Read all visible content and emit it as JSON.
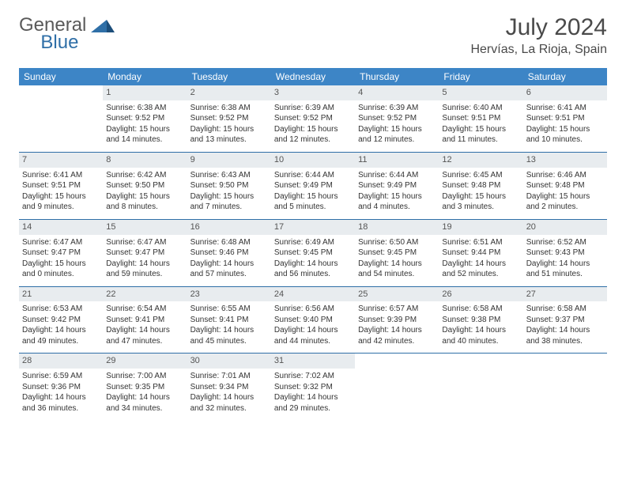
{
  "brand": {
    "part1": "General",
    "part2": "Blue",
    "icon_color": "#2f6fa7"
  },
  "title": "July 2024",
  "location": "Hervías, La Rioja, Spain",
  "colors": {
    "header_bg": "#3d85c6",
    "header_text": "#ffffff",
    "daynum_bg": "#e8ecef",
    "row_border": "#2f6fa7",
    "text": "#333333"
  },
  "weekdays": [
    "Sunday",
    "Monday",
    "Tuesday",
    "Wednesday",
    "Thursday",
    "Friday",
    "Saturday"
  ],
  "weeks": [
    [
      null,
      {
        "n": "1",
        "sr": "6:38 AM",
        "ss": "9:52 PM",
        "dl": "15 hours and 14 minutes."
      },
      {
        "n": "2",
        "sr": "6:38 AM",
        "ss": "9:52 PM",
        "dl": "15 hours and 13 minutes."
      },
      {
        "n": "3",
        "sr": "6:39 AM",
        "ss": "9:52 PM",
        "dl": "15 hours and 12 minutes."
      },
      {
        "n": "4",
        "sr": "6:39 AM",
        "ss": "9:52 PM",
        "dl": "15 hours and 12 minutes."
      },
      {
        "n": "5",
        "sr": "6:40 AM",
        "ss": "9:51 PM",
        "dl": "15 hours and 11 minutes."
      },
      {
        "n": "6",
        "sr": "6:41 AM",
        "ss": "9:51 PM",
        "dl": "15 hours and 10 minutes."
      }
    ],
    [
      {
        "n": "7",
        "sr": "6:41 AM",
        "ss": "9:51 PM",
        "dl": "15 hours and 9 minutes."
      },
      {
        "n": "8",
        "sr": "6:42 AM",
        "ss": "9:50 PM",
        "dl": "15 hours and 8 minutes."
      },
      {
        "n": "9",
        "sr": "6:43 AM",
        "ss": "9:50 PM",
        "dl": "15 hours and 7 minutes."
      },
      {
        "n": "10",
        "sr": "6:44 AM",
        "ss": "9:49 PM",
        "dl": "15 hours and 5 minutes."
      },
      {
        "n": "11",
        "sr": "6:44 AM",
        "ss": "9:49 PM",
        "dl": "15 hours and 4 minutes."
      },
      {
        "n": "12",
        "sr": "6:45 AM",
        "ss": "9:48 PM",
        "dl": "15 hours and 3 minutes."
      },
      {
        "n": "13",
        "sr": "6:46 AM",
        "ss": "9:48 PM",
        "dl": "15 hours and 2 minutes."
      }
    ],
    [
      {
        "n": "14",
        "sr": "6:47 AM",
        "ss": "9:47 PM",
        "dl": "15 hours and 0 minutes."
      },
      {
        "n": "15",
        "sr": "6:47 AM",
        "ss": "9:47 PM",
        "dl": "14 hours and 59 minutes."
      },
      {
        "n": "16",
        "sr": "6:48 AM",
        "ss": "9:46 PM",
        "dl": "14 hours and 57 minutes."
      },
      {
        "n": "17",
        "sr": "6:49 AM",
        "ss": "9:45 PM",
        "dl": "14 hours and 56 minutes."
      },
      {
        "n": "18",
        "sr": "6:50 AM",
        "ss": "9:45 PM",
        "dl": "14 hours and 54 minutes."
      },
      {
        "n": "19",
        "sr": "6:51 AM",
        "ss": "9:44 PM",
        "dl": "14 hours and 52 minutes."
      },
      {
        "n": "20",
        "sr": "6:52 AM",
        "ss": "9:43 PM",
        "dl": "14 hours and 51 minutes."
      }
    ],
    [
      {
        "n": "21",
        "sr": "6:53 AM",
        "ss": "9:42 PM",
        "dl": "14 hours and 49 minutes."
      },
      {
        "n": "22",
        "sr": "6:54 AM",
        "ss": "9:41 PM",
        "dl": "14 hours and 47 minutes."
      },
      {
        "n": "23",
        "sr": "6:55 AM",
        "ss": "9:41 PM",
        "dl": "14 hours and 45 minutes."
      },
      {
        "n": "24",
        "sr": "6:56 AM",
        "ss": "9:40 PM",
        "dl": "14 hours and 44 minutes."
      },
      {
        "n": "25",
        "sr": "6:57 AM",
        "ss": "9:39 PM",
        "dl": "14 hours and 42 minutes."
      },
      {
        "n": "26",
        "sr": "6:58 AM",
        "ss": "9:38 PM",
        "dl": "14 hours and 40 minutes."
      },
      {
        "n": "27",
        "sr": "6:58 AM",
        "ss": "9:37 PM",
        "dl": "14 hours and 38 minutes."
      }
    ],
    [
      {
        "n": "28",
        "sr": "6:59 AM",
        "ss": "9:36 PM",
        "dl": "14 hours and 36 minutes."
      },
      {
        "n": "29",
        "sr": "7:00 AM",
        "ss": "9:35 PM",
        "dl": "14 hours and 34 minutes."
      },
      {
        "n": "30",
        "sr": "7:01 AM",
        "ss": "9:34 PM",
        "dl": "14 hours and 32 minutes."
      },
      {
        "n": "31",
        "sr": "7:02 AM",
        "ss": "9:32 PM",
        "dl": "14 hours and 29 minutes."
      },
      null,
      null,
      null
    ]
  ],
  "labels": {
    "sunrise": "Sunrise: ",
    "sunset": "Sunset: ",
    "daylight": "Daylight: "
  }
}
